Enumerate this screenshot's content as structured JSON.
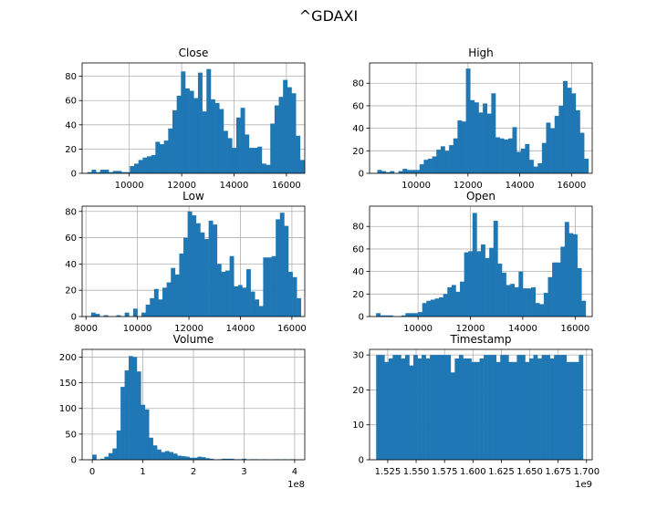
{
  "figure": {
    "title": "^GDAXI"
  },
  "style": {
    "bar_color": "#1f77b4",
    "grid_color": "#b0b0b0"
  },
  "chart_data": [
    {
      "type": "histogram",
      "title": "Close",
      "xlim": [
        8200,
        16700
      ],
      "ylim": [
        0,
        91
      ],
      "xticks": [
        10000,
        12000,
        14000,
        16000
      ],
      "yticks": [
        0,
        20,
        40,
        60,
        80
      ],
      "x_offset_label": "",
      "grid": true,
      "bins": {
        "start": 8400,
        "width": 162.4
      },
      "counts": [
        1,
        3,
        1,
        3,
        3,
        1,
        2,
        2,
        1,
        1,
        6,
        8,
        11,
        13,
        14,
        15,
        26,
        24,
        27,
        37,
        52,
        64,
        84,
        70,
        68,
        62,
        83,
        51,
        86,
        61,
        58,
        53,
        35,
        29,
        21,
        46,
        54,
        32,
        21,
        21,
        22,
        8,
        7,
        41,
        56,
        63,
        77,
        71,
        66,
        31,
        11
      ]
    },
    {
      "type": "histogram",
      "title": "High",
      "xlim": [
        8200,
        16800
      ],
      "ylim": [
        0,
        98
      ],
      "xticks": [
        10000,
        12000,
        14000,
        16000
      ],
      "yticks": [
        0,
        20,
        40,
        60,
        80
      ],
      "x_offset_label": "",
      "grid": true,
      "bins": {
        "start": 8500,
        "width": 163
      },
      "counts": [
        3,
        2,
        1,
        2,
        0,
        2,
        4,
        3,
        3,
        3,
        8,
        12,
        13,
        15,
        21,
        24,
        20,
        25,
        31,
        47,
        46,
        93,
        65,
        63,
        54,
        62,
        53,
        71,
        32,
        31,
        30,
        31,
        41,
        19,
        22,
        26,
        12,
        6,
        9,
        27,
        45,
        40,
        51,
        60,
        82,
        76,
        71,
        56,
        36,
        13
      ]
    },
    {
      "type": "histogram",
      "title": "Low",
      "xlim": [
        7850,
        16500
      ],
      "ylim": [
        0,
        84
      ],
      "xticks": [
        8000,
        10000,
        12000,
        14000,
        16000
      ],
      "yticks": [
        0,
        20,
        40,
        60,
        80
      ],
      "x_offset_label": "",
      "grid": true,
      "bins": {
        "start": 8200,
        "width": 163
      },
      "counts": [
        3,
        2,
        0,
        1,
        0,
        0,
        1,
        0,
        3,
        0,
        6,
        0,
        3,
        9,
        14,
        21,
        13,
        22,
        26,
        37,
        32,
        48,
        60,
        80,
        77,
        71,
        64,
        59,
        73,
        70,
        40,
        34,
        35,
        46,
        23,
        24,
        22,
        36,
        19,
        13,
        8,
        45,
        45,
        46,
        74,
        79,
        69,
        34,
        30,
        14
      ]
    },
    {
      "type": "histogram",
      "title": "Open",
      "xlim": [
        8150,
        16650
      ],
      "ylim": [
        0,
        98
      ],
      "xticks": [
        10000,
        12000,
        14000,
        16000
      ],
      "yticks": [
        0,
        20,
        40,
        60,
        80
      ],
      "x_offset_label": "",
      "grid": true,
      "bins": {
        "start": 8400,
        "width": 160
      },
      "counts": [
        3,
        1,
        1,
        1,
        0,
        0,
        1,
        3,
        3,
        3,
        4,
        12,
        14,
        15,
        16,
        17,
        20,
        26,
        28,
        22,
        31,
        57,
        58,
        92,
        58,
        64,
        52,
        61,
        85,
        47,
        39,
        28,
        29,
        26,
        40,
        25,
        25,
        26,
        12,
        11,
        21,
        35,
        48,
        48,
        62,
        84,
        74,
        73,
        43,
        14
      ]
    },
    {
      "type": "histogram",
      "title": "Volume",
      "xlim": [
        -20000000,
        420000000
      ],
      "ylim": [
        0,
        215
      ],
      "xticks": [
        0,
        100000000,
        200000000,
        300000000,
        400000000
      ],
      "xticklabels": [
        "0",
        "1",
        "2",
        "3",
        "4"
      ],
      "yticks": [
        0,
        50,
        100,
        150,
        200
      ],
      "x_offset_label": "1e8",
      "grid": true,
      "bins": {
        "start": 0,
        "width": 8000000
      },
      "counts": [
        10,
        0,
        2,
        6,
        13,
        22,
        57,
        142,
        174,
        202,
        200,
        172,
        107,
        98,
        43,
        28,
        20,
        15,
        17,
        15,
        12,
        8,
        7,
        6,
        4,
        4,
        6,
        5,
        3,
        2,
        0,
        1,
        2,
        2,
        2,
        1,
        1,
        2,
        0,
        1,
        1,
        0,
        1,
        0,
        0,
        1,
        0,
        1,
        0,
        1
      ]
    },
    {
      "type": "histogram",
      "title": "Timestamp",
      "xlim": [
        1509000000,
        1705000000
      ],
      "ylim": [
        0,
        31.6
      ],
      "xticks": [
        1525000000,
        1550000000,
        1575000000,
        1600000000,
        1625000000,
        1650000000,
        1675000000,
        1700000000
      ],
      "xticklabels": [
        "1.525",
        "1.550",
        "1.575",
        "1.600",
        "1.625",
        "1.650",
        "1.675",
        "1.700"
      ],
      "yticks": [
        0,
        10,
        20,
        30
      ],
      "x_offset_label": "1e9",
      "grid": true,
      "bins": {
        "start": 1514800000,
        "width": 3642000
      },
      "counts": [
        30,
        30,
        28,
        29,
        30,
        30,
        29,
        30,
        27,
        30,
        29,
        30,
        29,
        30,
        30,
        30,
        30,
        30,
        25,
        29,
        30,
        29,
        29,
        28,
        28,
        29,
        30,
        30,
        30,
        28,
        30,
        30,
        28,
        28,
        30,
        30,
        28,
        29,
        30,
        29,
        30,
        30,
        29,
        30,
        30,
        30,
        28,
        28,
        28,
        30
      ]
    }
  ]
}
